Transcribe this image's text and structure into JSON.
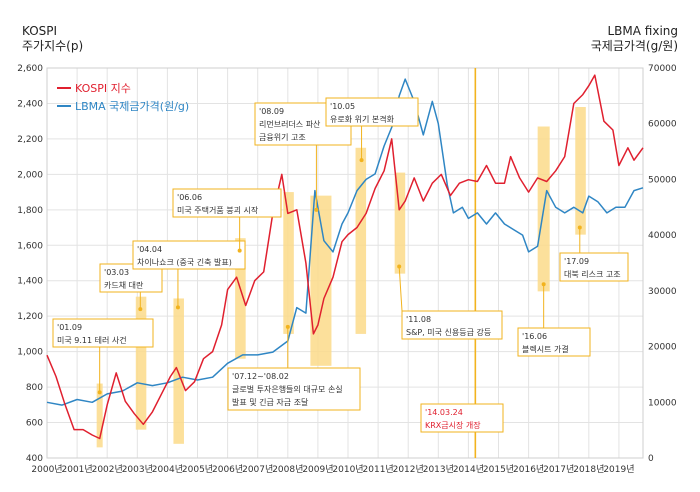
{
  "chart_data": {
    "type": "line",
    "left_axis": {
      "title_line1": "KOSPI",
      "title_line2": "주가지수(p)",
      "ylim": [
        400,
        2600
      ],
      "ticks": [
        "400",
        "600",
        "800",
        "1,000",
        "1,200",
        "1,400",
        "1,600",
        "1,800",
        "2,000",
        "2,200",
        "2,400",
        "2,600"
      ]
    },
    "right_axis": {
      "title_line1": "LBMA fixing",
      "title_line2": "국제금가격(g/원)",
      "ylim": [
        0,
        70000
      ],
      "ticks": [
        "0",
        "10000",
        "20000",
        "30000",
        "40000",
        "50000",
        "60000",
        "70000"
      ]
    },
    "x_axis": {
      "range": [
        2000.0,
        2019.8
      ],
      "ticks": [
        "2000년",
        "2001년",
        "2002년",
        "2003년",
        "2004년",
        "2005년",
        "2006년",
        "2007년",
        "2008년",
        "2009년",
        "2010년",
        "2011년",
        "2012년",
        "2013년",
        "2014년",
        "2015년",
        "2016년",
        "2017년",
        "2018년",
        "2019년"
      ]
    },
    "legend": {
      "position": "top-left",
      "kospi_label": "KOSPI 지수",
      "lbma_label": "LBMA 국제금가격(원/g)"
    },
    "colors": {
      "kospi": "#e0202f",
      "lbma": "#2f86c4",
      "band": "#fcdb8a",
      "vline": "#f2b31e",
      "grid": "#e3e3e3",
      "highlight_text": "#e0202f"
    },
    "series": [
      {
        "name": "KOSPI 지수",
        "axis": "left",
        "x": [
          2000.0,
          2000.3,
          2000.6,
          2000.9,
          2001.2,
          2001.5,
          2001.75,
          2002.0,
          2002.3,
          2002.6,
          2002.9,
          2003.2,
          2003.5,
          2003.8,
          2004.1,
          2004.3,
          2004.6,
          2004.9,
          2005.2,
          2005.5,
          2005.8,
          2006.0,
          2006.3,
          2006.6,
          2006.9,
          2007.2,
          2007.5,
          2007.8,
          2008.0,
          2008.3,
          2008.6,
          2008.85,
          2009.0,
          2009.2,
          2009.5,
          2009.8,
          2010.0,
          2010.3,
          2010.6,
          2010.9,
          2011.2,
          2011.45,
          2011.7,
          2011.9,
          2012.2,
          2012.5,
          2012.8,
          2013.1,
          2013.4,
          2013.7,
          2014.0,
          2014.3,
          2014.6,
          2014.9,
          2015.2,
          2015.4,
          2015.7,
          2016.0,
          2016.3,
          2016.6,
          2016.9,
          2017.2,
          2017.5,
          2017.8,
          2018.0,
          2018.2,
          2018.5,
          2018.8,
          2019.0,
          2019.3,
          2019.5,
          2019.8
        ],
        "values": [
          980,
          860,
          700,
          560,
          560,
          530,
          510,
          700,
          880,
          720,
          650,
          590,
          660,
          760,
          860,
          910,
          780,
          830,
          960,
          1000,
          1150,
          1350,
          1420,
          1260,
          1400,
          1450,
          1780,
          2000,
          1780,
          1800,
          1500,
          1100,
          1150,
          1300,
          1420,
          1620,
          1660,
          1700,
          1780,
          1920,
          2020,
          2200,
          1800,
          1850,
          1980,
          1850,
          1950,
          2000,
          1880,
          1950,
          1970,
          1960,
          2050,
          1950,
          1950,
          2100,
          1980,
          1900,
          1980,
          1960,
          2020,
          2100,
          2400,
          2450,
          2500,
          2560,
          2300,
          2250,
          2050,
          2150,
          2080,
          2150
        ]
      },
      {
        "name": "LBMA 국제금가격(원/g)",
        "axis": "right",
        "x": [
          2000.0,
          2000.5,
          2001.0,
          2001.5,
          2002.0,
          2002.5,
          2003.0,
          2003.5,
          2004.0,
          2004.5,
          2005.0,
          2005.5,
          2006.0,
          2006.5,
          2007.0,
          2007.5,
          2008.0,
          2008.3,
          2008.6,
          2008.9,
          2009.2,
          2009.5,
          2009.8,
          2010.0,
          2010.3,
          2010.6,
          2010.9,
          2011.2,
          2011.5,
          2011.7,
          2011.9,
          2012.2,
          2012.5,
          2012.8,
          2013.0,
          2013.3,
          2013.5,
          2013.8,
          2014.0,
          2014.3,
          2014.6,
          2014.9,
          2015.2,
          2015.5,
          2015.8,
          2016.0,
          2016.3,
          2016.6,
          2016.9,
          2017.2,
          2017.5,
          2017.8,
          2018.0,
          2018.3,
          2018.6,
          2018.9,
          2019.2,
          2019.5,
          2019.8
        ],
        "values": [
          10000,
          9500,
          10500,
          10000,
          11500,
          12000,
          13500,
          13000,
          13500,
          14500,
          14000,
          14500,
          17000,
          18500,
          18500,
          19000,
          21000,
          27000,
          26000,
          48000,
          39000,
          37000,
          42000,
          44000,
          48000,
          50000,
          51000,
          56000,
          60000,
          65000,
          68000,
          64000,
          58000,
          64000,
          60000,
          49000,
          44000,
          45000,
          43000,
          44000,
          42000,
          44000,
          42000,
          41000,
          40000,
          37000,
          38000,
          48000,
          45000,
          44000,
          45000,
          44000,
          47000,
          46000,
          44000,
          45000,
          45000,
          48000,
          48500
        ]
      }
    ],
    "annotations": [
      {
        "label_line1": "'01.09",
        "label_line2": "미국 9.11 테러 사건"
      },
      {
        "label_line1": "'03.03",
        "label_line2": "카드채 대란"
      },
      {
        "label_line1": "'04.04",
        "label_line2": "차이나쇼크 (중국 긴축 발표)"
      },
      {
        "label_line1": "'06.06",
        "label_line2": "미국 주택거품 붕괴 시작"
      },
      {
        "label_line1": "'07.12~'08.02",
        "label_line2": "글로벌 투자은행들의 대규모 손실",
        "label_line3": "발표 및 긴급 자금 조달"
      },
      {
        "label_line1": "'08.09",
        "label_line2": "리먼브러더스 파산",
        "label_line3": "금융위기 고조"
      },
      {
        "label_line1": "'10.05",
        "label_line2": "유로화 위기 본격화"
      },
      {
        "label_line1": "'11.08",
        "label_line2": "S&P, 미국 신용등급 강등"
      },
      {
        "label_line1": "'14.03.24",
        "label_line2": "KRX금시장 개장"
      },
      {
        "label_line1": "'16.06",
        "label_line2": "블렉시트 가결"
      },
      {
        "label_line1": "'17.09",
        "label_line2": "대북 리스크 고조"
      }
    ]
  }
}
